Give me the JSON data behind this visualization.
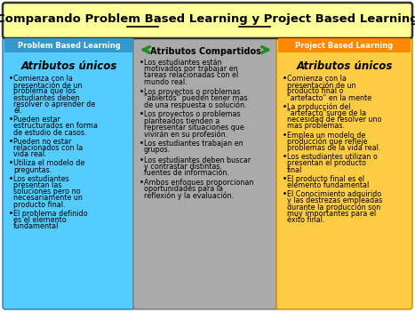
{
  "title_bg": "#FFFF99",
  "title_border": "#333333",
  "title_text": "Comparando Problem Based Learning y Project Based Learning",
  "col1_header": "Problem Based Learning",
  "col1_header_bg": "#3399CC",
  "col1_header_color": "#FFFFFF",
  "col1_bg": "#55CCFF",
  "col1_title": "Atributos únicos",
  "col1_items": [
    "Comienza con la presentación de un problema que los estudiantes deben resolver o aprender de él.",
    "Pueden estar estructurados en forma de estudio de casos.",
    "Pueden no estar relacionados con la vida real.",
    "Utiliza el modelo de preguntas.",
    "Los estudiantes presentan las soluciones pero no necesariamente un producto final.",
    "El problema definido es el elemento fundamental"
  ],
  "col2_header": "Atributos Compartidos",
  "col2_bg": "#AAAAAA",
  "col2_items": [
    "Los estudiantes están motivados por trabajar en tareas relacionadas con el mundo real.",
    "Los proyectos o problemas \"abiertos\" pueden tener mas de una respuesta o solución.",
    "Los proyectos o problemas planteados tienden a representar situaciones que vivirán en su profesión.",
    "Los estudiantes trabajan en grupos.",
    "Los estudiantes deben buscar y contrastar distintas fuentes de información.",
    "Ambos enfoques proporcionan oportunidades para la reflexión y la evaluación."
  ],
  "col3_header": "Project Based Learning",
  "col3_header_bg": "#FF8800",
  "col3_header_color": "#FFFFFF",
  "col3_bg": "#FFCC44",
  "col3_title": "Atributos únicos",
  "col3_items": [
    "Comienza con la presentación de un producto final o \"artefacto\" en la mente",
    "La producción del \"artefacto\"surge de la necesidad de  resolver uno mas problemas.",
    "Emplea un modelo de producción que refleje problemas de la vida real.",
    "Los estudiantes utilizan o presentan el producto final",
    "El producto final es el elemento fundamental",
    "El Conocimiento adquirido y las destrezas empleadas durante la producción son muy importantes para el éxito final."
  ],
  "arrow_color": "#228B22",
  "bullet": "•"
}
